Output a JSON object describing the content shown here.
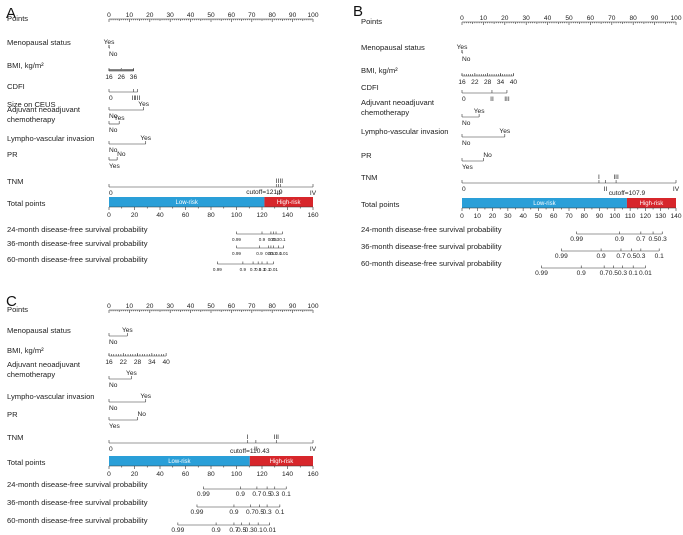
{
  "chart_data": [
    {
      "panel": "A",
      "type": "nomogram",
      "points_label": "Points",
      "points_ticks": [
        "0",
        "10",
        "20",
        "30",
        "40",
        "50",
        "60",
        "70",
        "80",
        "90",
        "100"
      ],
      "vars": [
        {
          "label": "Menopausal status",
          "levels": [
            {
              "text": "Yes",
              "at": 0
            },
            {
              "text": "No",
              "at": 0
            }
          ]
        },
        {
          "label": "BMI, kg/m²",
          "levels": [
            {
              "text": "16",
              "at": 0
            },
            {
              "text": "26",
              "at": 6
            },
            {
              "text": "36",
              "at": 12
            }
          ]
        },
        {
          "label": "CDFI",
          "levels": [
            {
              "text": "0",
              "at": 0
            },
            {
              "text": "II",
              "at": 12
            },
            {
              "text": "III",
              "at": 14
            }
          ]
        },
        {
          "label": "Size on CEUS",
          "levels": [
            {
              "text": "Yes",
              "at": 17
            },
            {
              "text": "No",
              "at": 0
            }
          ]
        },
        {
          "label": "Adjuvant neoadjuvant chemotherapy",
          "levels": [
            {
              "text": "Yes",
              "at": 5
            },
            {
              "text": "No",
              "at": 0
            }
          ]
        },
        {
          "label": "Lympho-vascular invasion",
          "levels": [
            {
              "text": "Yes",
              "at": 18
            },
            {
              "text": "No",
              "at": 0
            }
          ]
        },
        {
          "label": "PR",
          "levels": [
            {
              "text": "No",
              "at": 4
            },
            {
              "text": "Yes",
              "at": 0
            }
          ]
        },
        {
          "label": "TNM",
          "levels": [
            {
              "text": "0",
              "at": 0
            },
            {
              "text": "I",
              "at": 82
            },
            {
              "text": "II",
              "at": 83
            },
            {
              "text": "III",
              "at": 84
            },
            {
              "text": "IV",
              "at": 100
            }
          ]
        }
      ],
      "total_label": "Total points",
      "total_ticks": [
        "0",
        "20",
        "40",
        "60",
        "80",
        "100",
        "120",
        "140",
        "160"
      ],
      "total_max": 160,
      "cutoff_label": "cutoff=121.9",
      "cutoff": 121.9,
      "low_label": "Low-risk",
      "high_label": "High-risk",
      "surv": [
        {
          "label": "24-month disease-free survival probability",
          "values": [
            "0.99",
            "0.9",
            "0.7",
            "0.5",
            "0.3",
            "0.1"
          ],
          "tp": [
            100,
            120,
            127,
            129,
            131,
            136
          ]
        },
        {
          "label": "36-month disease-free survival probability",
          "values": [
            "0.99",
            "0.9",
            "0.7",
            "0.5",
            "0.3",
            "0.1",
            "0.01"
          ],
          "tp": [
            100,
            118,
            125,
            127,
            129,
            133,
            137
          ]
        },
        {
          "label": "60-month disease-free survival probability",
          "values": [
            "0.99",
            "0.9",
            "0.7",
            "0.5",
            "0.3",
            "0.1",
            "0.01"
          ],
          "tp": [
            85,
            105,
            113,
            117,
            120,
            124,
            129
          ]
        }
      ]
    },
    {
      "panel": "B",
      "type": "nomogram",
      "points_label": "Points",
      "points_ticks": [
        "0",
        "10",
        "20",
        "30",
        "40",
        "50",
        "60",
        "70",
        "80",
        "90",
        "100"
      ],
      "vars": [
        {
          "label": "Menopausal status",
          "levels": [
            {
              "text": "Yes",
              "at": 0
            },
            {
              "text": "No",
              "at": 0
            }
          ]
        },
        {
          "label": "BMI, kg/m²",
          "levels": [
            {
              "text": "16",
              "at": 0
            },
            {
              "text": "22",
              "at": 6
            },
            {
              "text": "28",
              "at": 12
            },
            {
              "text": "34",
              "at": 18
            },
            {
              "text": "40",
              "at": 24
            }
          ]
        },
        {
          "label": "CDFI",
          "levels": [
            {
              "text": "0",
              "at": 0
            },
            {
              "text": "II",
              "at": 14
            },
            {
              "text": "III",
              "at": 21
            }
          ]
        },
        {
          "label": "Adjuvant neoadjuvant chemotherapy",
          "levels": [
            {
              "text": "Yes",
              "at": 8
            },
            {
              "text": "No",
              "at": 0
            }
          ]
        },
        {
          "label": "Lympho-vascular invasion",
          "levels": [
            {
              "text": "Yes",
              "at": 20
            },
            {
              "text": "No",
              "at": 0
            }
          ]
        },
        {
          "label": "PR",
          "levels": [
            {
              "text": "No",
              "at": 10
            },
            {
              "text": "Yes",
              "at": 0
            }
          ]
        },
        {
          "label": "TNM",
          "levels": [
            {
              "text": "0",
              "at": 0
            },
            {
              "text": "I",
              "at": 64
            },
            {
              "text": "II",
              "at": 67
            },
            {
              "text": "III",
              "at": 72
            },
            {
              "text": "IV",
              "at": 100
            }
          ]
        }
      ],
      "total_label": "Total points",
      "total_ticks": [
        "0",
        "10",
        "20",
        "30",
        "40",
        "50",
        "60",
        "70",
        "80",
        "90",
        "100",
        "110",
        "120",
        "130",
        "140"
      ],
      "total_max": 140,
      "cutoff_label": "cutoff=107.9",
      "cutoff": 107.9,
      "low_label": "Low-risk",
      "high_label": "High-risk",
      "surv": [
        {
          "label": "24-month disease-free survival probability",
          "values": [
            "0.99",
            "0.9",
            "0.7",
            "0.5",
            "0.3"
          ],
          "tp": [
            75,
            103,
            117,
            125,
            131
          ]
        },
        {
          "label": "36-month disease-free survival probability",
          "values": [
            "0.99",
            "0.9",
            "0.7",
            "0.5",
            "0.3",
            "0.1"
          ],
          "tp": [
            65,
            91,
            104,
            111,
            117,
            129
          ]
        },
        {
          "label": "60-month disease-free survival probability",
          "values": [
            "0.99",
            "0.9",
            "0.7",
            "0.5",
            "0.3",
            "0.1",
            "0.01"
          ],
          "tp": [
            52,
            78,
            93,
            99,
            105,
            112,
            120
          ]
        }
      ]
    },
    {
      "panel": "C",
      "type": "nomogram",
      "points_label": "Points",
      "points_ticks": [
        "0",
        "10",
        "20",
        "30",
        "40",
        "50",
        "60",
        "70",
        "80",
        "90",
        "100"
      ],
      "vars": [
        {
          "label": "Menopausal status",
          "levels": [
            {
              "text": "Yes",
              "at": 9
            },
            {
              "text": "No",
              "at": 0
            }
          ]
        },
        {
          "label": "BMI, kg/m²",
          "levels": [
            {
              "text": "16",
              "at": 0
            },
            {
              "text": "22",
              "at": 7
            },
            {
              "text": "28",
              "at": 14
            },
            {
              "text": "34",
              "at": 21
            },
            {
              "text": "40",
              "at": 28
            }
          ]
        },
        {
          "label": "Adjuvant neoadjuvant chemotherapy",
          "levels": [
            {
              "text": "Yes",
              "at": 11
            },
            {
              "text": "No",
              "at": 0
            }
          ]
        },
        {
          "label": "Lympho-vascular invasion",
          "levels": [
            {
              "text": "Yes",
              "at": 18
            },
            {
              "text": "No",
              "at": 0
            }
          ]
        },
        {
          "label": "PR",
          "levels": [
            {
              "text": "No",
              "at": 14
            },
            {
              "text": "Yes",
              "at": 0
            }
          ]
        },
        {
          "label": "TNM",
          "levels": [
            {
              "text": "0",
              "at": 0
            },
            {
              "text": "I",
              "at": 68
            },
            {
              "text": "II",
              "at": 72
            },
            {
              "text": "III",
              "at": 82
            },
            {
              "text": "IV",
              "at": 100
            }
          ]
        }
      ],
      "total_label": "Total points",
      "total_ticks": [
        "0",
        "20",
        "40",
        "60",
        "80",
        "100",
        "120",
        "140",
        "160"
      ],
      "total_max": 160,
      "cutoff_label": "cutoff=110.43",
      "cutoff": 110.43,
      "low_label": "Low-risk",
      "high_label": "High-risk",
      "surv": [
        {
          "label": "24-month disease-free survival probability",
          "values": [
            "0.99",
            "0.9",
            "0.7",
            "0.5",
            "0.3",
            "0.1"
          ],
          "tp": [
            74,
            103,
            116,
            124,
            130,
            139
          ]
        },
        {
          "label": "36-month disease-free survival probability",
          "values": [
            "0.99",
            "0.9",
            "0.7",
            "0.5",
            "0.3",
            "0.1"
          ],
          "tp": [
            69,
            98,
            111,
            118,
            124,
            134
          ]
        },
        {
          "label": "60-month disease-free survival probability",
          "values": [
            "0.99",
            "0.9",
            "0.7",
            "0.5",
            "0.3",
            "0.1",
            "0.01"
          ],
          "tp": [
            54,
            84,
            98,
            104,
            110,
            117,
            126
          ]
        }
      ]
    }
  ],
  "colors": {
    "low": "#2a9fd8",
    "high": "#d7262b",
    "axis": "#333333"
  }
}
